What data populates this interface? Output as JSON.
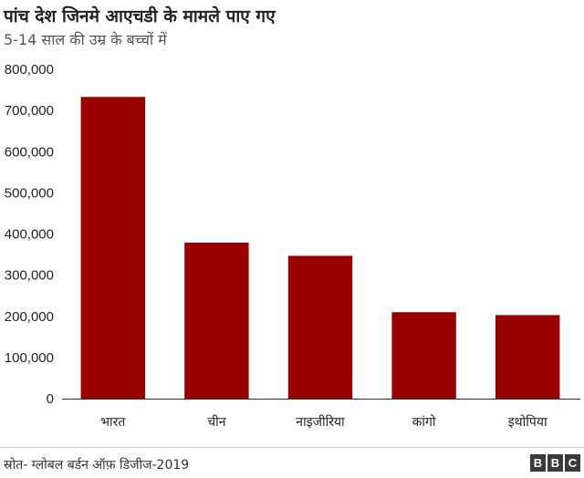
{
  "header": {
    "title": "पांच देश जिनमे आएचडी के मामले पाए गए",
    "subtitle": "5-14 साल की उम्र के बच्चों में"
  },
  "footer": {
    "source": "स्रोत- ग्लोबल बर्डन ऑफ़ डिजीज-2019",
    "logo_letters": [
      "B",
      "B",
      "C"
    ]
  },
  "colors": {
    "bar": "#990000",
    "grid": "#dddddd",
    "axis": "#333333"
  },
  "chart_data": {
    "type": "bar",
    "categories": [
      "भारत",
      "चीन",
      "नाइजीरिया",
      "कांगो",
      "इथोपिया"
    ],
    "values": [
      733000,
      379000,
      347000,
      210000,
      203000
    ],
    "ylim": [
      0,
      800000
    ],
    "yticks": [
      0,
      100000,
      200000,
      300000,
      400000,
      500000,
      600000,
      700000,
      800000
    ],
    "ytick_labels": [
      "0",
      "100,000",
      "200,000",
      "300,000",
      "400,000",
      "500,000",
      "600,000",
      "700,000",
      "800,000"
    ],
    "grid": false,
    "legend": "none"
  }
}
